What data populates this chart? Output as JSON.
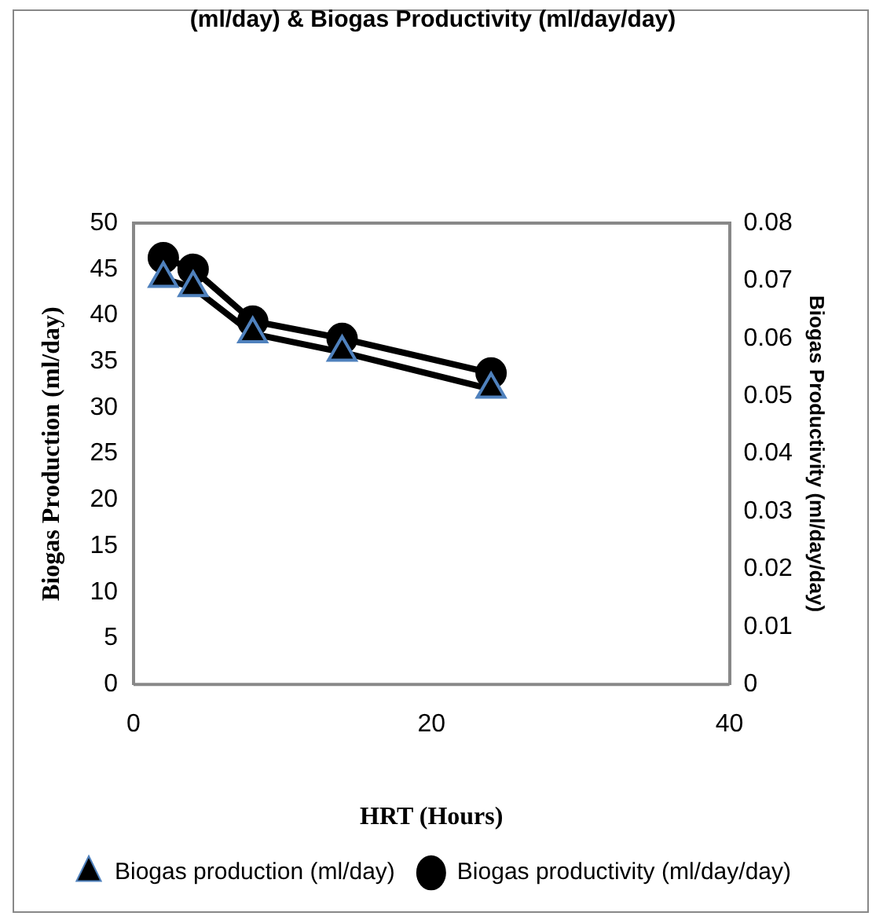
{
  "chart_data": {
    "type": "line",
    "title": "(ml/day) & Biogas Productivity (ml/day/day)",
    "xlabel": "HRT (Hours)",
    "ylabel": "Biogas Production (ml/day)",
    "y2label": "Biogas Productivity (ml/day/day)",
    "x": [
      2,
      4,
      8,
      14,
      24
    ],
    "series": [
      {
        "name": "Biogas production (ml/day)",
        "color": "#000000",
        "marker": "triangle",
        "values": [
          44,
          43,
          38,
          36,
          32
        ]
      },
      {
        "name": "Biogas productivity (ml/day/day)",
        "color": "#000000",
        "marker": "circle",
        "axis": "y2",
        "values": [
          0.074,
          0.072,
          0.063,
          0.06,
          0.054
        ]
      }
    ],
    "xlim": [
      0,
      40
    ],
    "xticks": [
      0,
      20,
      40
    ],
    "ylim": [
      0,
      50
    ],
    "yticks": [
      0,
      5,
      10,
      15,
      20,
      25,
      30,
      35,
      40,
      45,
      50
    ],
    "y2lim": [
      0,
      0.08
    ],
    "y2ticks": [
      0,
      0.01,
      0.02,
      0.03,
      0.04,
      0.05,
      0.06,
      0.07,
      0.08
    ],
    "grid": false,
    "legend": "bottom",
    "line_style": "solid"
  }
}
